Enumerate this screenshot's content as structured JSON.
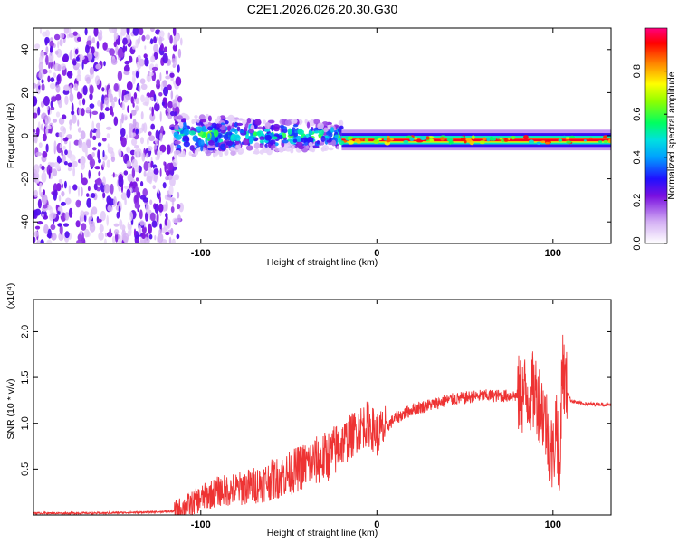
{
  "title": "C2E1.2026.026.20.30.G30",
  "colors": {
    "snr_line": "#ee3333",
    "strong_line": "#cc1111",
    "speckle_dense": "#7a10e0",
    "speckle_light": "#e2ccf6"
  },
  "chart_data": [
    {
      "type": "heatmap",
      "name": "spectrogram",
      "xlabel": "Height of straight line (km)",
      "ylabel": "Frequency (Hz)",
      "xlim": [
        -195,
        133
      ],
      "ylim": [
        -50,
        50
      ],
      "xticks": [
        -100,
        0,
        100
      ],
      "yticks": [
        -40,
        -20,
        0,
        20,
        40
      ],
      "colorbar": {
        "label": "Normalized spectral amplitude",
        "range": [
          0,
          1
        ],
        "ticks": [
          "0.0",
          "0.2",
          "0.4",
          "0.6",
          "0.8"
        ],
        "tick_values": [
          0.0,
          0.2,
          0.4,
          0.6,
          0.8
        ]
      },
      "regions": [
        {
          "from_km": -195,
          "to_km": -115,
          "description": "broadband noise",
          "freq_span_hz": [
            -50,
            50
          ],
          "amplitude": 0.15
        },
        {
          "from_km": -115,
          "to_km": -20,
          "description": "scattered signal",
          "center_hz": 0,
          "half_width_hz": 6,
          "amplitude": 0.5
        },
        {
          "from_km": -20,
          "to_km": 133,
          "description": "strong carrier",
          "center_hz": -2,
          "half_width_hz": 2,
          "amplitude": 0.95
        }
      ]
    },
    {
      "type": "line",
      "name": "snr",
      "xlabel": "Height of straight line (km)",
      "ylabel": "SNR (10 * v/v)",
      "yscale_label": "(x10⁴)",
      "xlim": [
        -195,
        133
      ],
      "ylim": [
        0,
        2.35
      ],
      "xticks": [
        -100,
        0,
        100
      ],
      "yticks": [
        0.5,
        1.0,
        1.5,
        2.0
      ],
      "ytick_labels": [
        "0.5",
        "1.0",
        "1.5",
        "2.0"
      ],
      "series": [
        {
          "name": "SNR",
          "x": [
            -195,
            -160,
            -130,
            -115,
            -105,
            -100,
            -95,
            -90,
            -80,
            -70,
            -60,
            -50,
            -40,
            -30,
            -25,
            -20,
            -15,
            -10,
            -5,
            0,
            5,
            10,
            20,
            30,
            40,
            50,
            60,
            70,
            80,
            85,
            90,
            95,
            100,
            102,
            104,
            105,
            107,
            110,
            115,
            120,
            125,
            133
          ],
          "y": [
            0.02,
            0.02,
            0.03,
            0.04,
            0.12,
            0.18,
            0.22,
            0.26,
            0.28,
            0.32,
            0.38,
            0.45,
            0.55,
            0.62,
            0.68,
            0.78,
            0.85,
            0.95,
            1.0,
            0.88,
            0.95,
            1.05,
            1.15,
            1.2,
            1.25,
            1.28,
            1.3,
            1.3,
            1.3,
            1.32,
            1.35,
            1.1,
            0.6,
            1.1,
            0.3,
            1.7,
            1.4,
            1.25,
            1.22,
            1.21,
            1.21,
            1.2
          ]
        }
      ]
    }
  ]
}
